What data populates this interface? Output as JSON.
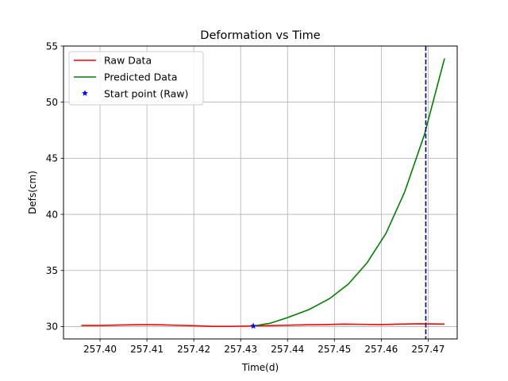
{
  "chart_data": {
    "type": "line",
    "title": "Deformation vs Time",
    "xlabel": "Time(d)",
    "ylabel": "Defs(cm)",
    "xlim": [
      257.3922,
      257.4762
    ],
    "ylim": [
      28.9,
      55.0
    ],
    "xticks": [
      257.4,
      257.41,
      257.42,
      257.43,
      257.44,
      257.45,
      257.46,
      257.47
    ],
    "xtick_labels": [
      "257.40",
      "257.41",
      "257.42",
      "257.43",
      "257.44",
      "257.45",
      "257.46",
      "257.47"
    ],
    "yticks": [
      30,
      35,
      40,
      45,
      50,
      55
    ],
    "ytick_labels": [
      "30",
      "35",
      "40",
      "45",
      "50",
      "55"
    ],
    "grid": true,
    "legend_position": "top-left",
    "series": [
      {
        "name": "Raw Data",
        "color": "#ff0000",
        "style": "line",
        "x": [
          257.396,
          257.4,
          257.404,
          257.408,
          257.412,
          257.416,
          257.42,
          257.424,
          257.428,
          257.432,
          257.4355,
          257.44,
          257.444,
          257.448,
          257.452,
          257.456,
          257.46,
          257.464,
          257.468,
          257.4735
        ],
        "y": [
          30.1,
          30.1,
          30.13,
          30.17,
          30.17,
          30.12,
          30.08,
          30.02,
          30.02,
          30.05,
          30.08,
          30.12,
          30.16,
          30.18,
          30.22,
          30.2,
          30.18,
          30.22,
          30.25,
          30.22
        ]
      },
      {
        "name": "Predicted Data",
        "color": "#008000",
        "style": "line",
        "x": [
          257.4327,
          257.4363,
          257.44,
          257.4445,
          257.449,
          257.453,
          257.457,
          257.461,
          257.465,
          257.4692,
          257.4735
        ],
        "y": [
          30.05,
          30.3,
          30.8,
          31.5,
          32.5,
          33.8,
          35.7,
          38.3,
          42.0,
          47.1,
          53.9
        ]
      },
      {
        "name": "Start point (Raw)",
        "color": "#0000ff",
        "style": "marker",
        "marker": "star",
        "x": [
          257.4327
        ],
        "y": [
          30.05
        ]
      }
    ],
    "vline": {
      "x": 257.4695,
      "color": "#00008b",
      "style": "dashed"
    }
  }
}
